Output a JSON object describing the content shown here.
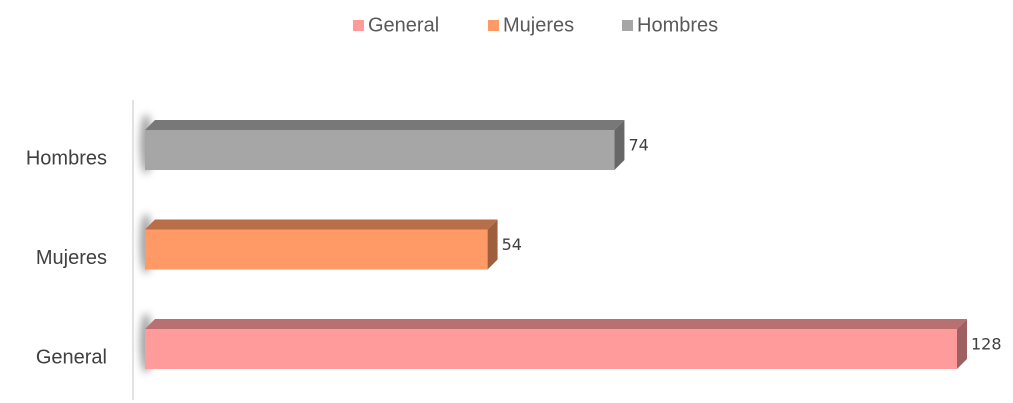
{
  "chart_data": {
    "type": "bar",
    "orientation": "horizontal",
    "categories": [
      "General",
      "Mujeres",
      "Hombres"
    ],
    "values": [
      128,
      54,
      74
    ],
    "colors": [
      "#ff9b9b",
      "#ff9966",
      "#a6a6a6"
    ],
    "legend": "top"
  }
}
